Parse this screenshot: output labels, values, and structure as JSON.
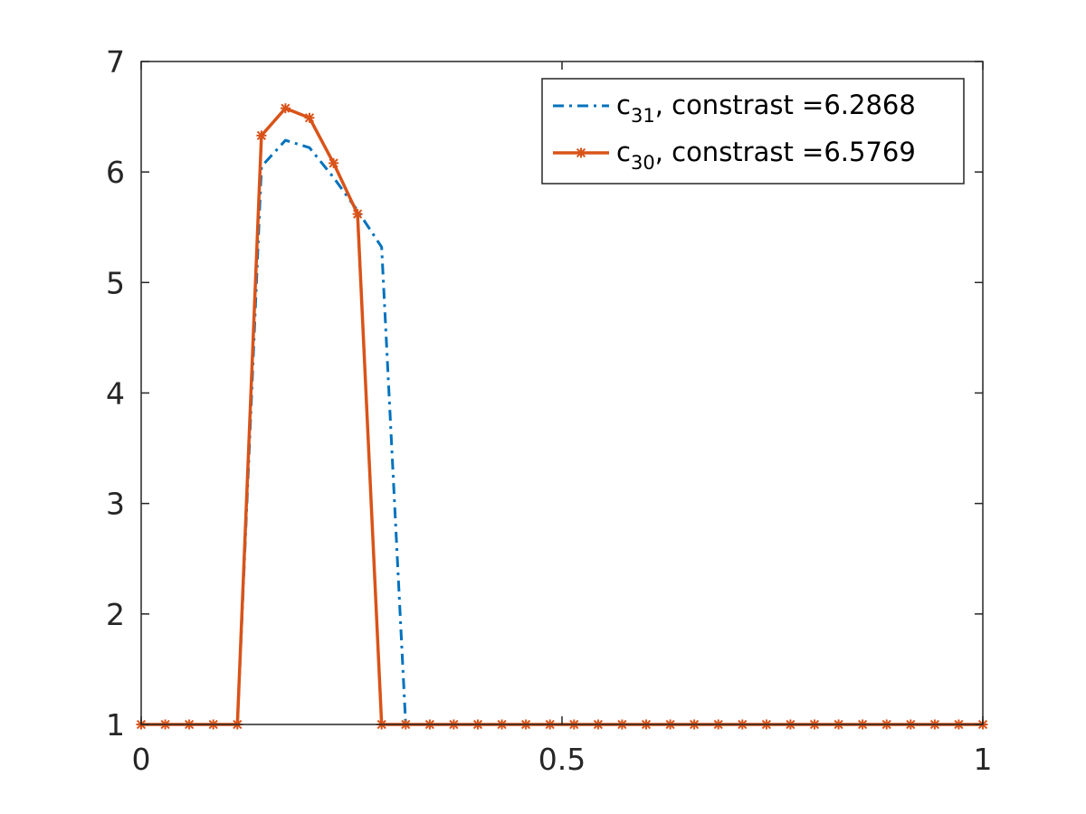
{
  "chart_data": {
    "type": "line",
    "title": "",
    "xlabel": "",
    "ylabel": "",
    "xlim": [
      0,
      1
    ],
    "ylim": [
      1,
      7
    ],
    "xticks": [
      0,
      0.5,
      1
    ],
    "xtick_labels": [
      "0",
      "0.5",
      "1"
    ],
    "yticks": [
      1,
      2,
      3,
      4,
      5,
      6,
      7
    ],
    "ytick_labels": [
      "1",
      "2",
      "3",
      "4",
      "5",
      "6",
      "7"
    ],
    "grid": false,
    "legend_position": "top-right",
    "series": [
      {
        "name": "c31, constrast =6.2868",
        "legend": {
          "base": "c",
          "sub": "31",
          "rest": ", constrast =6.2868"
        },
        "color": "#0072BD",
        "line_style": "dash-dot",
        "marker": "none",
        "x": [
          0,
          0.0286,
          0.0571,
          0.0857,
          0.1143,
          0.1429,
          0.1714,
          0.2,
          0.2286,
          0.2571,
          0.2857,
          0.3143,
          0.3429,
          0.3714,
          0.4,
          0.4286,
          0.4571,
          0.4857,
          0.5143,
          0.5429,
          0.5714,
          0.6,
          0.6286,
          0.6571,
          0.6857,
          0.7143,
          0.7429,
          0.7714,
          0.8,
          0.8286,
          0.8571,
          0.8857,
          0.9143,
          0.9429,
          0.9714,
          1
        ],
        "y": [
          1,
          1,
          1,
          1,
          1,
          6.05,
          6.2868,
          6.22,
          5.95,
          5.65,
          5.32,
          1,
          1,
          1,
          1,
          1,
          1,
          1,
          1,
          1,
          1,
          1,
          1,
          1,
          1,
          1,
          1,
          1,
          1,
          1,
          1,
          1,
          1,
          1,
          1,
          1
        ]
      },
      {
        "name": "c30, constrast =6.5769",
        "legend": {
          "base": "c",
          "sub": "30",
          "rest": ", constrast =6.5769"
        },
        "color": "#D95319",
        "line_style": "solid",
        "marker": "asterisk",
        "x": [
          0,
          0.0286,
          0.0571,
          0.0857,
          0.1143,
          0.1429,
          0.1714,
          0.2,
          0.2286,
          0.2571,
          0.2857,
          0.3143,
          0.3429,
          0.3714,
          0.4,
          0.4286,
          0.4571,
          0.4857,
          0.5143,
          0.5429,
          0.5714,
          0.6,
          0.6286,
          0.6571,
          0.6857,
          0.7143,
          0.7429,
          0.7714,
          0.8,
          0.8286,
          0.8571,
          0.8857,
          0.9143,
          0.9429,
          0.9714,
          1
        ],
        "y": [
          1,
          1,
          1,
          1,
          1,
          6.33,
          6.5769,
          6.49,
          6.08,
          5.62,
          1,
          1,
          1,
          1,
          1,
          1,
          1,
          1,
          1,
          1,
          1,
          1,
          1,
          1,
          1,
          1,
          1,
          1,
          1,
          1,
          1,
          1,
          1,
          1,
          1,
          1
        ]
      }
    ]
  }
}
